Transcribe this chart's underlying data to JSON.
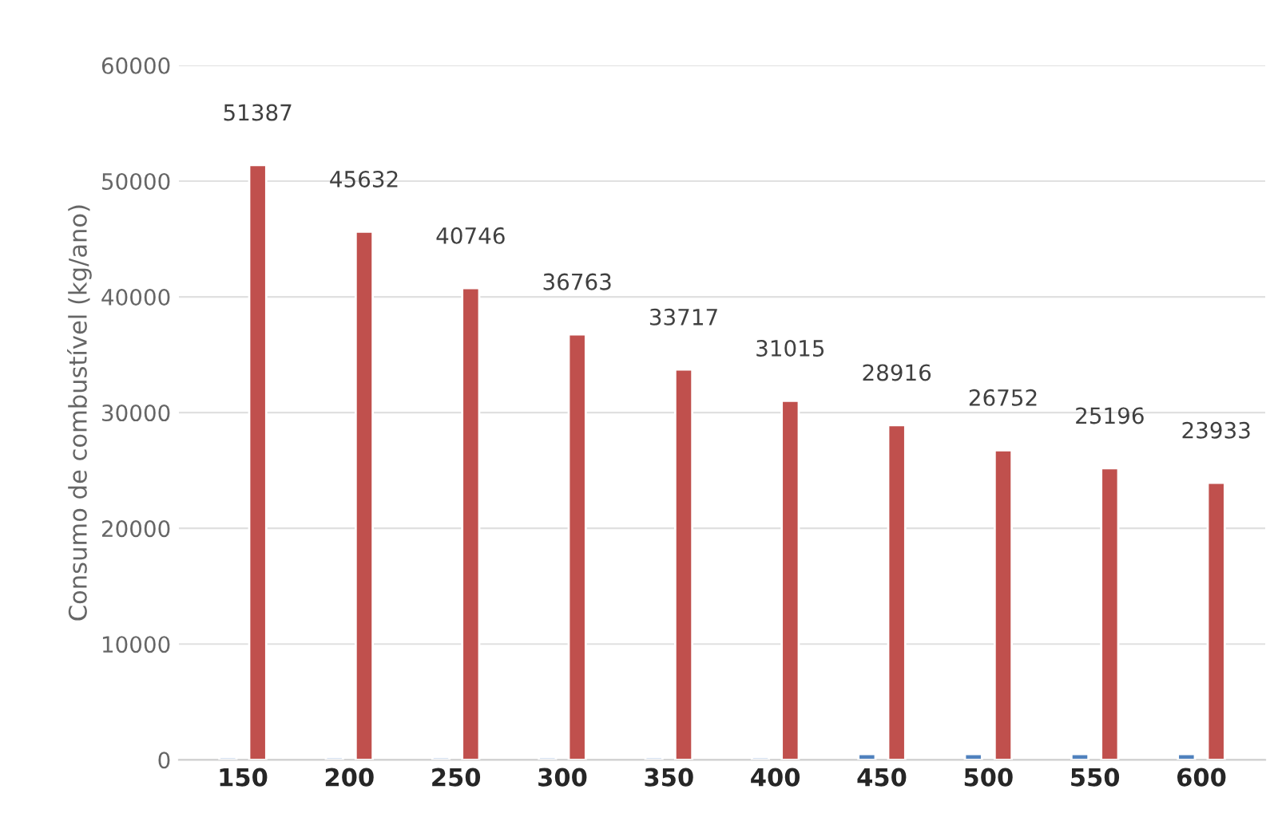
{
  "chart_data": {
    "type": "bar",
    "ylabel": "Consumo de combustível (kg/ano)",
    "categories": [
      "150",
      "200",
      "250",
      "300",
      "350",
      "400",
      "450",
      "500",
      "550",
      "600"
    ],
    "series": [
      {
        "color": "#4f81bd",
        "values": [
          200,
          200,
          200,
          200,
          200,
          200,
          500,
          500,
          500,
          500
        ]
      },
      {
        "color": "#c0504d",
        "values": [
          51387,
          45632,
          40746,
          36763,
          33717,
          31015,
          28916,
          26752,
          25196,
          23933
        ],
        "value_labels": [
          "51387",
          "45632",
          "40746",
          "36763",
          "33717",
          "31015",
          "28916",
          "26752",
          "25196",
          "23933"
        ]
      }
    ],
    "ylim": [
      0,
      60000
    ],
    "yticks": [
      0,
      10000,
      20000,
      30000,
      40000,
      50000,
      60000
    ],
    "grid": "y",
    "legend": false
  }
}
